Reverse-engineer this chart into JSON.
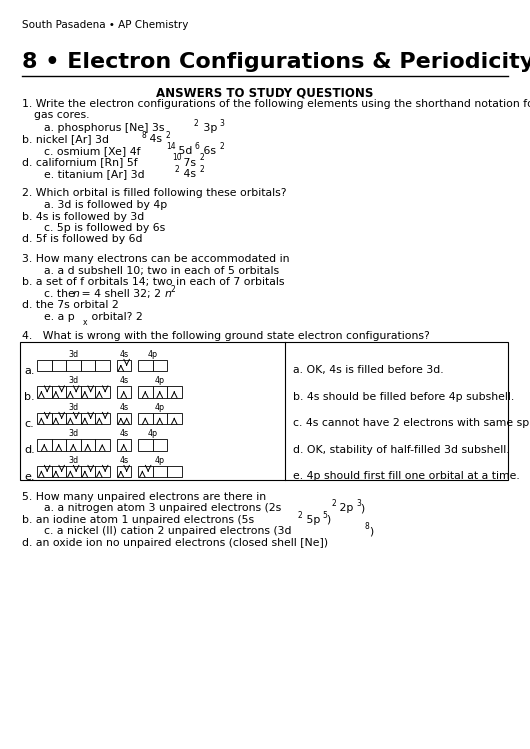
{
  "header": "South Pasadena • AP Chemistry",
  "title": "8 • Electron Configurations & Periodicity",
  "subtitle": "ANSWERS TO STUDY QUESTIONS",
  "bg_color": "#ffffff"
}
